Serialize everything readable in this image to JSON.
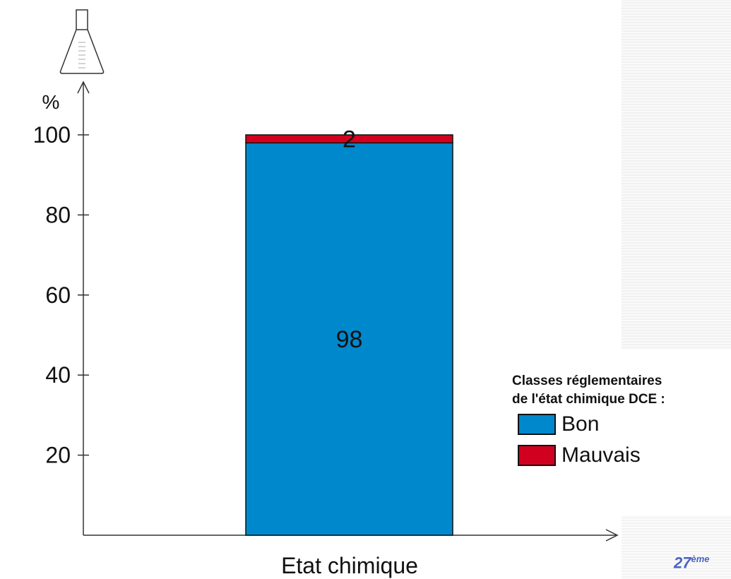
{
  "chart_data": {
    "type": "bar",
    "stacked": true,
    "categories": [
      "Etat chimique"
    ],
    "series": [
      {
        "name": "Bon",
        "values": [
          98
        ],
        "color": "#0088cc"
      },
      {
        "name": "Mauvais",
        "values": [
          2
        ],
        "color": "#d2001f"
      }
    ],
    "ylabel": "%",
    "xlabel": "",
    "ylim": [
      0,
      100
    ],
    "yticks": [
      20,
      40,
      60,
      80,
      100
    ],
    "grid": false,
    "legend": {
      "title_line1": "Classes réglementaires",
      "title_line2": "de l'état chimique DCE :",
      "placement": "right"
    },
    "icon": "flask-icon"
  },
  "footer": {
    "slide_number": "27",
    "slide_suffix": "ème"
  }
}
